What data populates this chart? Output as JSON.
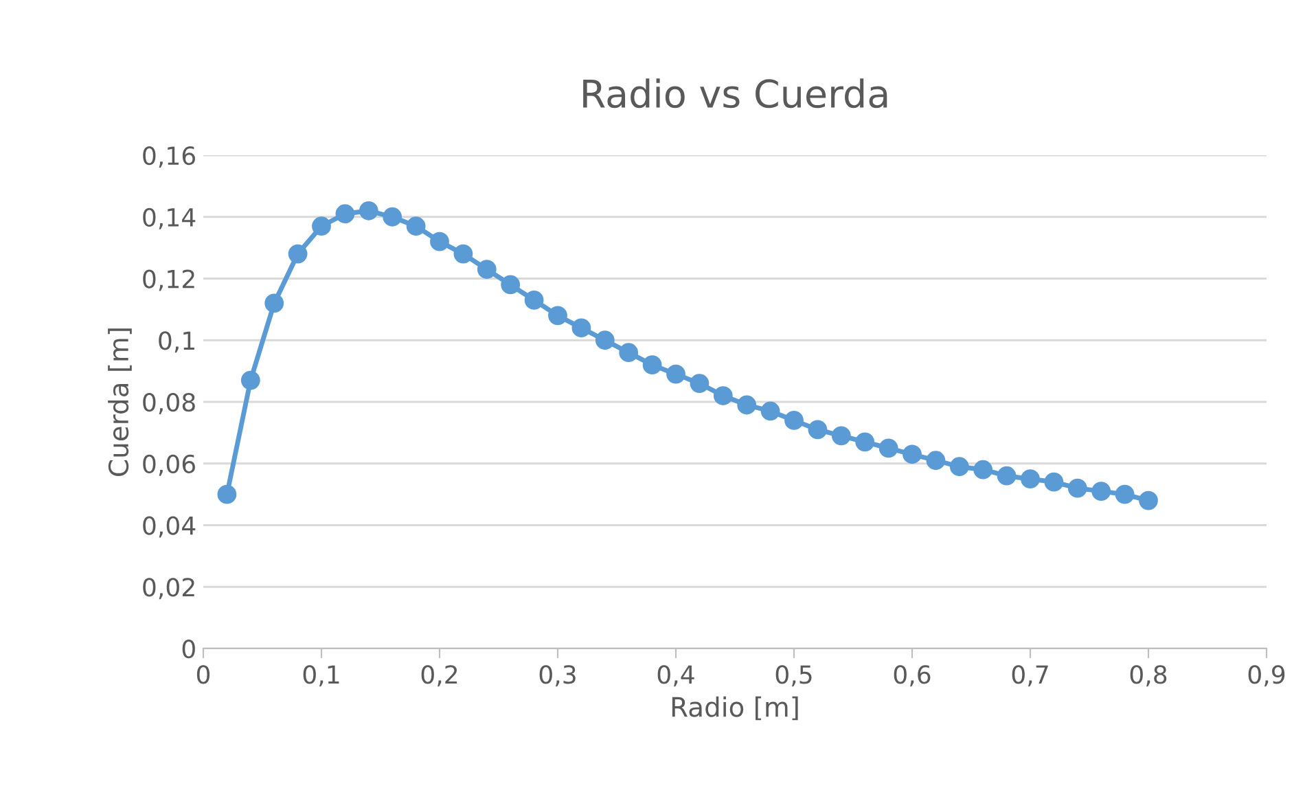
{
  "chart_data": {
    "type": "line",
    "title": "Radio vs Cuerda",
    "xlabel": "Radio [m]",
    "ylabel": "Cuerda [m]",
    "x": [
      0.02,
      0.04,
      0.06,
      0.08,
      0.1,
      0.12,
      0.14,
      0.16,
      0.18,
      0.2,
      0.22,
      0.24,
      0.26,
      0.28,
      0.3,
      0.32,
      0.34,
      0.36,
      0.38,
      0.4,
      0.42,
      0.44,
      0.46,
      0.48,
      0.5,
      0.52,
      0.54,
      0.56,
      0.58,
      0.6,
      0.62,
      0.64,
      0.66,
      0.68,
      0.7,
      0.72,
      0.74,
      0.76,
      0.78,
      0.8
    ],
    "series": [
      {
        "color": "#5b9bd5",
        "values": [
          0.05,
          0.087,
          0.112,
          0.128,
          0.137,
          0.141,
          0.142,
          0.14,
          0.137,
          0.132,
          0.128,
          0.123,
          0.118,
          0.113,
          0.108,
          0.104,
          0.1,
          0.096,
          0.092,
          0.089,
          0.086,
          0.082,
          0.079,
          0.077,
          0.074,
          0.071,
          0.069,
          0.067,
          0.065,
          0.063,
          0.061,
          0.059,
          0.058,
          0.056,
          0.055,
          0.054,
          0.052,
          0.051,
          0.05,
          0.048
        ]
      }
    ],
    "xlim": [
      0,
      0.9
    ],
    "xticks": [
      0,
      {
        "value": 0.1,
        "label": "0,1"
      },
      {
        "value": 0.2,
        "label": "0,2"
      },
      {
        "value": 0.3,
        "label": "0,3"
      },
      {
        "value": 0.4,
        "label": "0,4"
      },
      {
        "value": 0.5,
        "label": "0,5"
      },
      {
        "value": 0.6,
        "label": "0,6"
      },
      {
        "value": 0.7,
        "label": "0,7"
      },
      {
        "value": 0.8,
        "label": "0,8"
      },
      {
        "value": 0.9,
        "label": "0,9"
      }
    ],
    "ylim": [
      0,
      0.16
    ],
    "yticks": [
      0,
      {
        "value": 0.02,
        "label": "0,02"
      },
      {
        "value": 0.04,
        "label": "0,04"
      },
      {
        "value": 0.06,
        "label": "0,06"
      },
      {
        "value": 0.08,
        "label": "0,08"
      },
      {
        "value": 0.1,
        "label": "0,1"
      },
      {
        "value": 0.12,
        "label": "0,12"
      },
      {
        "value": 0.14,
        "label": "0,14"
      },
      {
        "value": 0.16,
        "label": "0,16"
      }
    ],
    "grid": "y",
    "marker": "circle",
    "line_style": "solid"
  }
}
